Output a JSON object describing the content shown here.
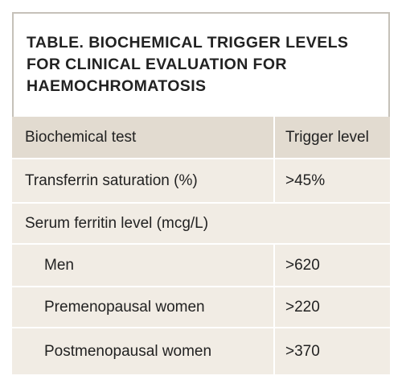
{
  "title": {
    "prefix": "TABLE.",
    "line1_rest": " BIOCHEMICAL TRIGGER LEVELS",
    "line2": "FOR CLINICAL EVALUATION FOR",
    "line3": "HAEMOCHROMATOSIS"
  },
  "table": {
    "headers": [
      "Biochemical test",
      "Trigger level"
    ],
    "rows": [
      {
        "test": "Transferrin saturation (%)",
        "level": ">45%"
      },
      {
        "test": "Serum ferritin level (mcg/L)",
        "level": ""
      },
      {
        "test": "Men",
        "level": ">620"
      },
      {
        "test": "Premenopausal women",
        "level": ">220"
      },
      {
        "test": "Postmenopausal women",
        "level": ">370"
      }
    ]
  },
  "colors": {
    "header_bg": "#e2dbd0",
    "body_bg": "#f1ece4",
    "title_border": "#c6c1b9",
    "text": "#222222"
  }
}
